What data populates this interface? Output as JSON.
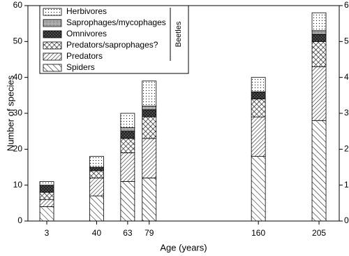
{
  "chart_data": {
    "type": "stacked_bar",
    "x": [
      3,
      40,
      63,
      79,
      160,
      205
    ],
    "xlim": [
      -11,
      220
    ],
    "xticks": [
      3,
      40,
      63,
      79,
      160,
      205
    ],
    "ylim": [
      0,
      60
    ],
    "yticks": [
      0,
      10,
      20,
      30,
      40,
      50,
      60
    ],
    "y2lim": [
      0,
      60
    ],
    "y2ticks": [
      0,
      10,
      20,
      30,
      40,
      50,
      60
    ],
    "xlabel": "Age (years)",
    "ylabel": "Number of species",
    "legend_group_label": "Beetles",
    "legend_position": "upper left",
    "series": [
      {
        "name": "Spiders",
        "color": "#000000",
        "pattern": "back-diagonal",
        "values": [
          4,
          7,
          11,
          12,
          18,
          28
        ]
      },
      {
        "name": "Predators",
        "color": "#000000",
        "pattern": "diagonal",
        "values": [
          2,
          5,
          8,
          11,
          11,
          15
        ]
      },
      {
        "name": "Predators/saprophages?",
        "color": "#000000",
        "pattern": "crosshatch",
        "values": [
          2,
          2,
          4,
          6,
          5,
          7
        ]
      },
      {
        "name": "Omnivores",
        "color": "#000000",
        "pattern": "dense-crosshatch",
        "values": [
          2,
          1,
          2,
          2,
          2,
          2
        ]
      },
      {
        "name": "Saprophages/mycophages",
        "color": "#000000",
        "pattern": "dense-dots",
        "values": [
          0,
          0,
          1,
          1,
          0,
          1
        ]
      },
      {
        "name": "Herbivores",
        "color": "#000000",
        "pattern": "dots",
        "values": [
          1,
          3,
          4,
          7,
          4,
          5
        ]
      }
    ]
  }
}
